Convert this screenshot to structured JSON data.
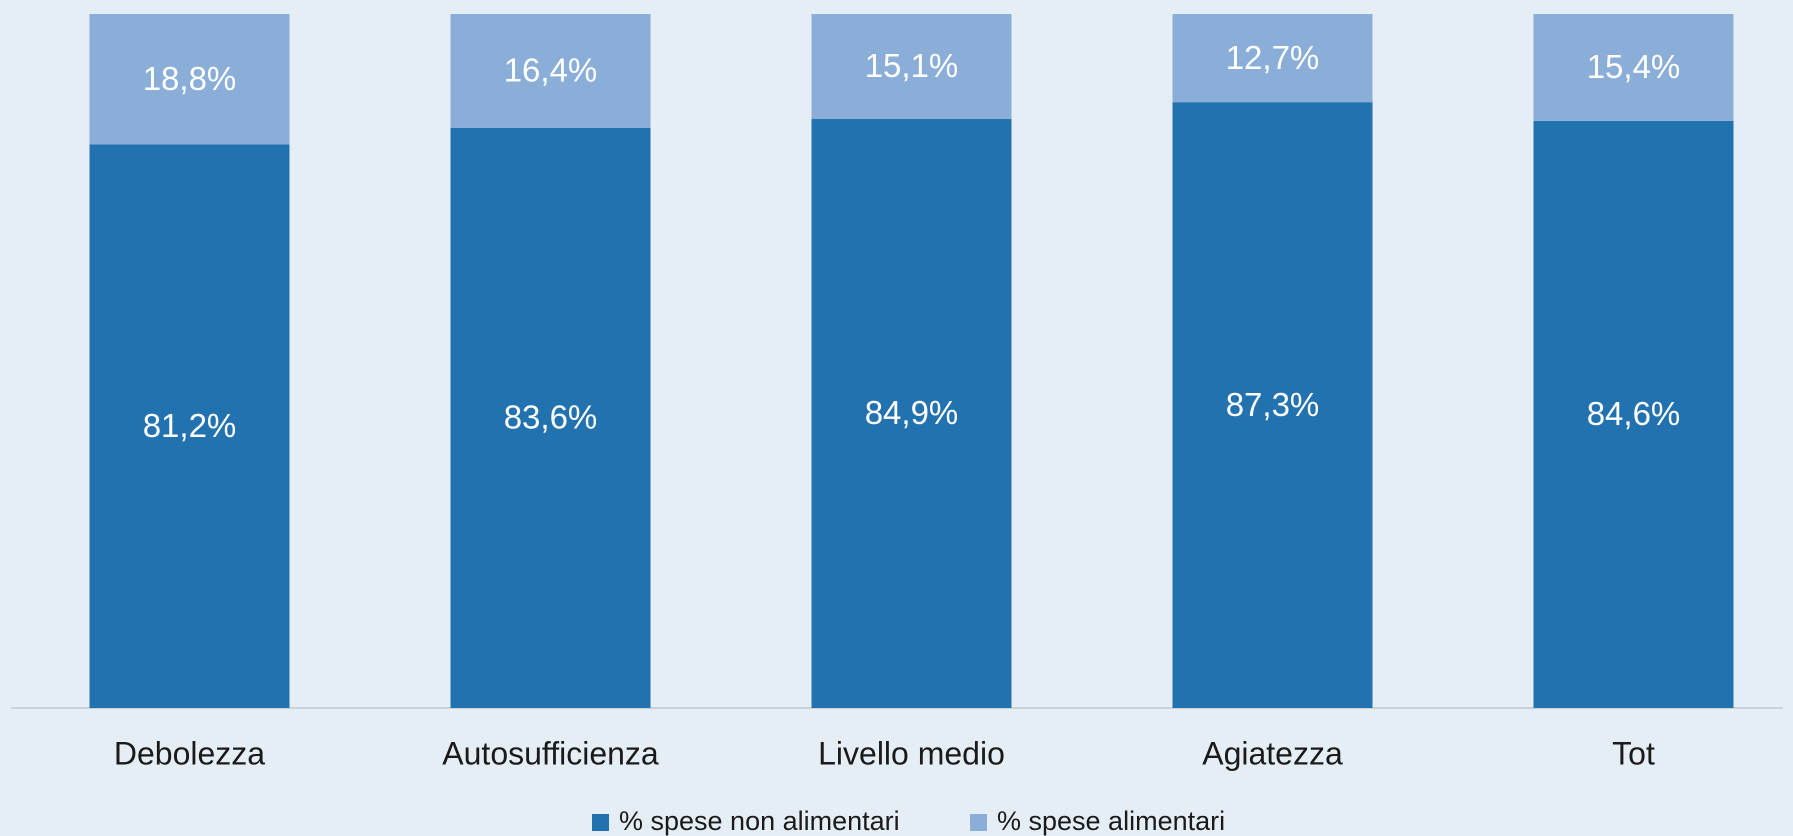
{
  "chart_data": {
    "type": "stacked_bar",
    "categories": [
      "Debolezza",
      "Autosufficienza",
      "Livello medio",
      "Agiatezza",
      "Tot"
    ],
    "series": [
      {
        "name": "% spese non alimentari",
        "color": "#2272b0",
        "values": [
          81.2,
          83.6,
          84.9,
          87.3,
          84.6
        ],
        "value_labels": [
          "81,2%",
          "83,6%",
          "84,9%",
          "87,3%",
          "84,6%"
        ]
      },
      {
        "name": "% spese alimentari",
        "color": "#8aaed8",
        "values": [
          18.8,
          16.4,
          15.1,
          12.7,
          15.4
        ],
        "value_labels": [
          "18,8%",
          "16,4%",
          "15,1%",
          "12,7%",
          "15,4%"
        ]
      }
    ],
    "legend": "bottom"
  }
}
